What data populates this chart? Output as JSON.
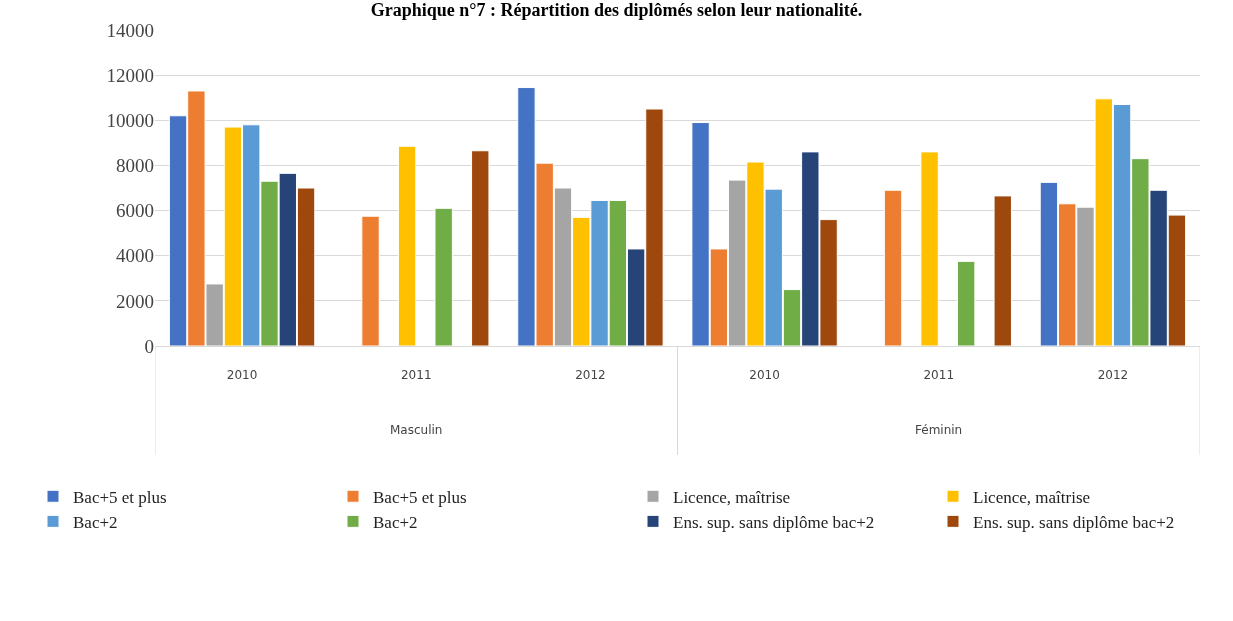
{
  "chart_data": {
    "type": "bar",
    "title": "Graphique n°7 : Répartition des diplômés selon leur nationalité.",
    "categories": [
      "2010",
      "2011",
      "2012",
      "2010",
      "2011",
      "2012"
    ],
    "annotations": [
      "Masculin",
      "Féminin"
    ],
    "ylim": [
      0,
      14000
    ],
    "yticks": [
      0,
      2000,
      4000,
      6000,
      8000,
      10000,
      12000,
      14000
    ],
    "grid": "y",
    "legend": "bottom",
    "series": [
      {
        "name": "Bac+5 et plus",
        "color": "#4472c4",
        "values": [
          10200,
          null,
          11450,
          9900,
          null,
          7250
        ]
      },
      {
        "name": "Bac+5 et plus",
        "color": "#ed7d31",
        "values": [
          11300,
          5750,
          8100,
          4300,
          6900,
          6300
        ]
      },
      {
        "name": "Licence, maîtrise",
        "color": "#a5a5a5",
        "values": [
          2750,
          null,
          7000,
          7350,
          null,
          6150
        ]
      },
      {
        "name": "Licence, maîtrise",
        "color": "#ffc000",
        "values": [
          9700,
          8850,
          5700,
          8150,
          8600,
          10950
        ]
      },
      {
        "name": "Bac+2",
        "color": "#5b9bd5",
        "values": [
          9800,
          null,
          6450,
          6950,
          null,
          10700
        ]
      },
      {
        "name": "Bac+2",
        "color": "#70ad47",
        "values": [
          7300,
          6100,
          6450,
          2500,
          3750,
          8300
        ]
      },
      {
        "name": "Ens. sup. sans diplôme bac+2",
        "color": "#264478",
        "values": [
          7650,
          null,
          4300,
          8600,
          null,
          6900
        ]
      },
      {
        "name": "Ens. sup. sans diplôme bac+2",
        "color": "#9e480e",
        "values": [
          7000,
          8650,
          10500,
          5600,
          6650,
          5800
        ]
      }
    ]
  }
}
